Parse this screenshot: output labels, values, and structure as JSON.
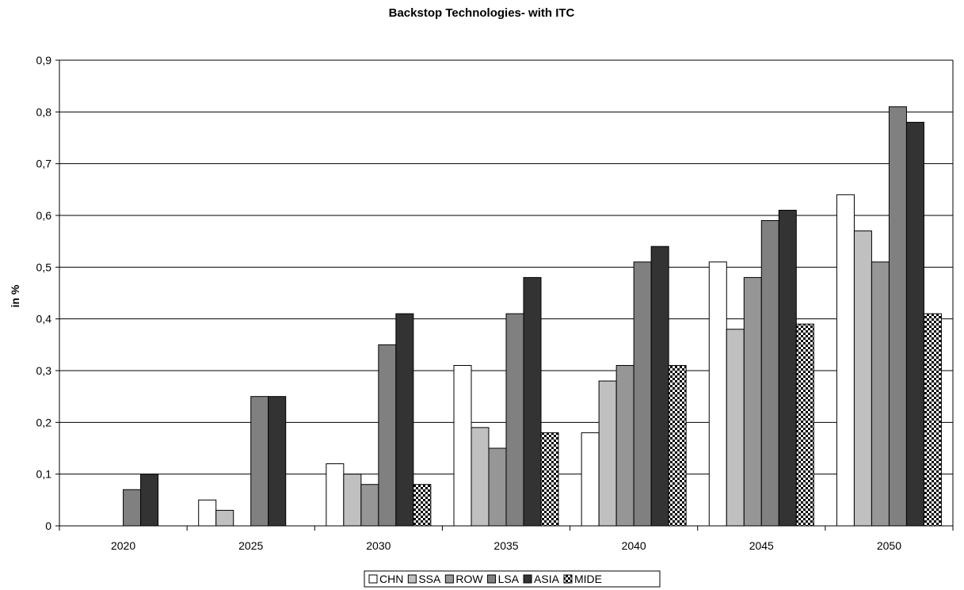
{
  "chart_data": {
    "type": "bar",
    "title": "Backstop Technologies- with ITC",
    "xlabel": "",
    "ylabel": "in %",
    "categories": [
      "2020",
      "2025",
      "2030",
      "2035",
      "2040",
      "2045",
      "2050"
    ],
    "ylim": [
      0,
      0.9
    ],
    "yticks": [
      "0",
      "0,1",
      "0,2",
      "0,3",
      "0,4",
      "0,5",
      "0,6",
      "0,7",
      "0,8",
      "0,9"
    ],
    "grid": true,
    "legend_position": "bottom",
    "series": [
      {
        "name": "CHN",
        "color": "#ffffff",
        "pattern": "solid",
        "values": [
          0,
          0.05,
          0.12,
          0.31,
          0.18,
          0.51,
          0.64
        ]
      },
      {
        "name": "SSA",
        "color": "#c0c0c0",
        "pattern": "solid",
        "values": [
          0,
          0.03,
          0.1,
          0.19,
          0.28,
          0.38,
          0.57
        ]
      },
      {
        "name": "ROW",
        "color": "#969696",
        "pattern": "solid",
        "values": [
          0,
          0,
          0.08,
          0.15,
          0.31,
          0.48,
          0.51
        ]
      },
      {
        "name": "LSA",
        "color": "#808080",
        "pattern": "solid",
        "values": [
          0.07,
          0.25,
          0.35,
          0.41,
          0.51,
          0.59,
          0.81
        ]
      },
      {
        "name": "ASIA",
        "color": "#333333",
        "pattern": "solid",
        "values": [
          0.1,
          0.25,
          0.41,
          0.48,
          0.54,
          0.61,
          0.78
        ]
      },
      {
        "name": "MIDE",
        "color": "#000000",
        "pattern": "checker",
        "values": [
          0,
          0,
          0.08,
          0.18,
          0.31,
          0.39,
          0.41
        ]
      }
    ]
  }
}
